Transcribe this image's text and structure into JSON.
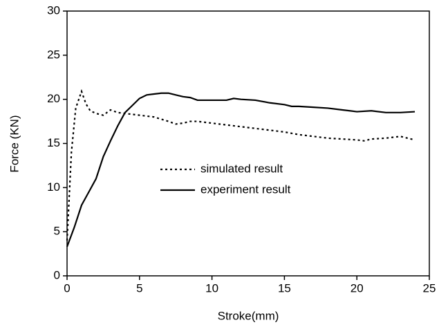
{
  "chart_data": {
    "type": "line",
    "x_label": "Stroke(mm)",
    "y_label": "Force (KN)",
    "xlim": [
      0,
      25
    ],
    "xticks": [
      0,
      5,
      10,
      15,
      20,
      25
    ],
    "ylim": [
      0,
      30
    ],
    "yticks": [
      0,
      5,
      10,
      15,
      20,
      25,
      30
    ],
    "series": [
      {
        "name": "simulated result",
        "color": "#000000",
        "dash": "dotted",
        "x": [
          0,
          0.3,
          0.6,
          1,
          1.3,
          1.6,
          2,
          2.5,
          3,
          3.5,
          4,
          5,
          6,
          7,
          7.5,
          8,
          8.5,
          9,
          10,
          11,
          12,
          13,
          14,
          15,
          16,
          17,
          18,
          19,
          20,
          20.5,
          21,
          22,
          23,
          24
        ],
        "values": [
          4,
          14,
          19,
          20.9,
          19.5,
          18.7,
          18.4,
          18.2,
          18.8,
          18.5,
          18.4,
          18.2,
          18.0,
          17.5,
          17.2,
          17.3,
          17.5,
          17.5,
          17.3,
          17.1,
          16.9,
          16.7,
          16.5,
          16.3,
          16.0,
          15.8,
          15.6,
          15.5,
          15.4,
          15.3,
          15.5,
          15.6,
          15.8,
          15.4
        ]
      },
      {
        "name": "experiment result",
        "color": "#000000",
        "dash": "solid",
        "x": [
          0,
          0.5,
          1,
          1.5,
          2,
          2.5,
          3,
          3.5,
          4,
          4.5,
          5,
          5.5,
          6,
          6.5,
          7,
          7.5,
          8,
          8.5,
          9,
          10,
          11,
          11.5,
          12,
          13,
          14,
          15,
          15.5,
          16,
          17,
          18,
          19,
          20,
          21,
          22,
          23,
          24
        ],
        "values": [
          3.3,
          5.5,
          8,
          9.5,
          11,
          13.5,
          15.3,
          17,
          18.5,
          19.3,
          20.1,
          20.5,
          20.6,
          20.7,
          20.7,
          20.5,
          20.3,
          20.2,
          19.9,
          19.9,
          19.9,
          20.1,
          20.0,
          19.9,
          19.6,
          19.4,
          19.2,
          19.2,
          19.1,
          19.0,
          18.8,
          18.6,
          18.7,
          18.5,
          18.5,
          18.6
        ]
      }
    ]
  }
}
